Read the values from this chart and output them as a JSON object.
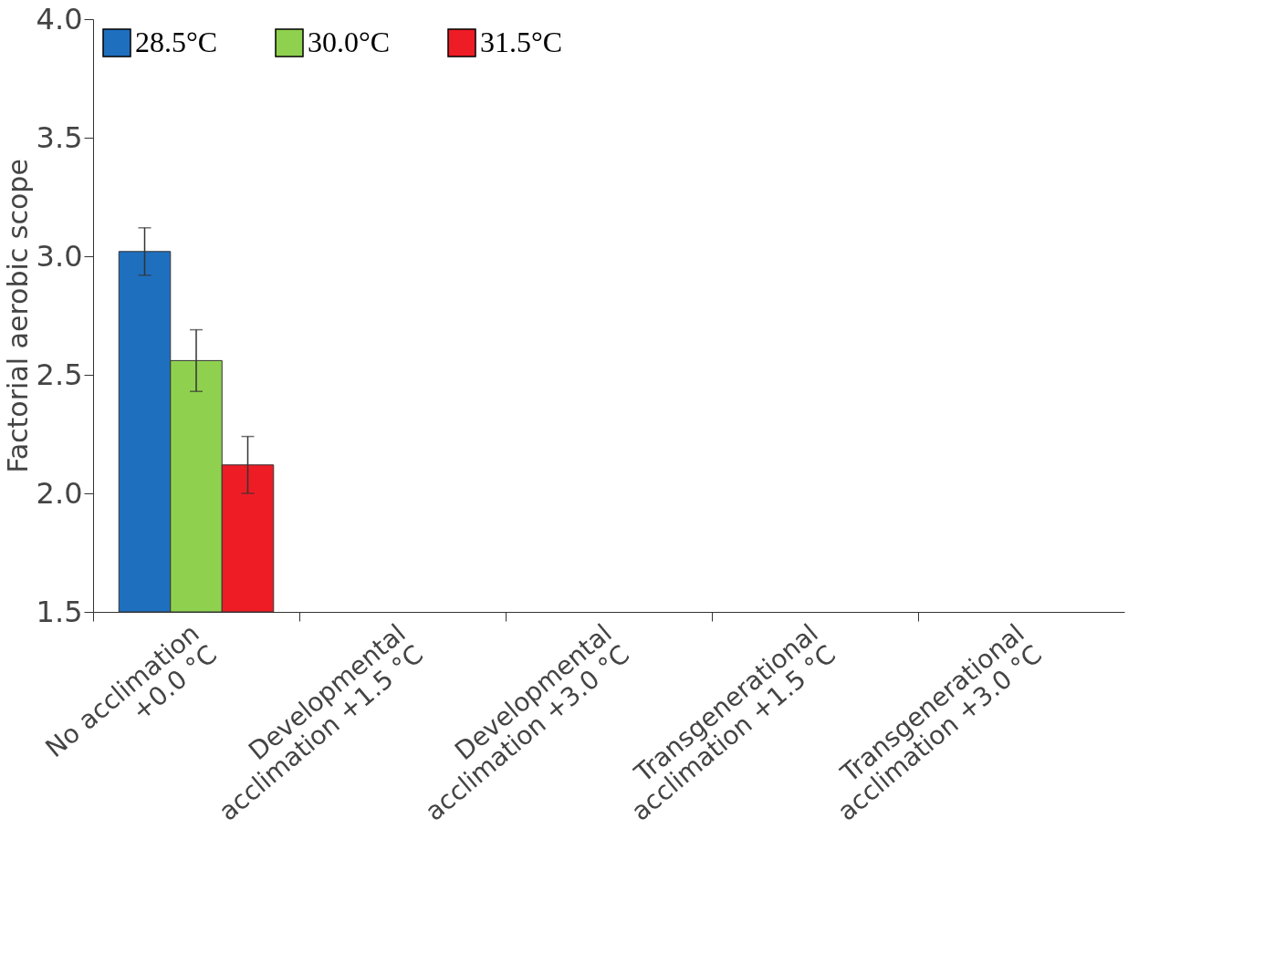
{
  "chart_data": {
    "type": "bar",
    "ylabel": "Factorial aerobic scope",
    "categories": [
      "No acclimation\n+0.0 °C",
      "Developmental\nacclimation +1.5 °C",
      "Developmental\nacclimation +3.0 °C",
      "Transgenerational\nacclimation +1.5 °C",
      "Transgenerational\nacclimation +3.0 °C"
    ],
    "series": [
      {
        "name": "28.5°C",
        "color": "#1f6fbf",
        "values": [
          3.02,
          null,
          null,
          null,
          null
        ],
        "errors": [
          0.1,
          null,
          null,
          null,
          null
        ]
      },
      {
        "name": "30.0°C",
        "color": "#8fd14f",
        "values": [
          2.56,
          null,
          null,
          null,
          null
        ],
        "errors": [
          0.13,
          null,
          null,
          null,
          null
        ]
      },
      {
        "name": "31.5°C",
        "color": "#ee1c25",
        "values": [
          2.12,
          null,
          null,
          null,
          null
        ],
        "errors": [
          0.12,
          null,
          null,
          null,
          null
        ]
      }
    ],
    "ylim": [
      1.5,
      4.0
    ],
    "yticks": [
      1.5,
      {
        "value": 2,
        "label": "2.0"
      },
      2.5,
      {
        "value": 3,
        "label": "3.0"
      },
      3.5,
      {
        "value": 4,
        "label": "4.0"
      }
    ],
    "grid": false,
    "legend": "top left"
  }
}
